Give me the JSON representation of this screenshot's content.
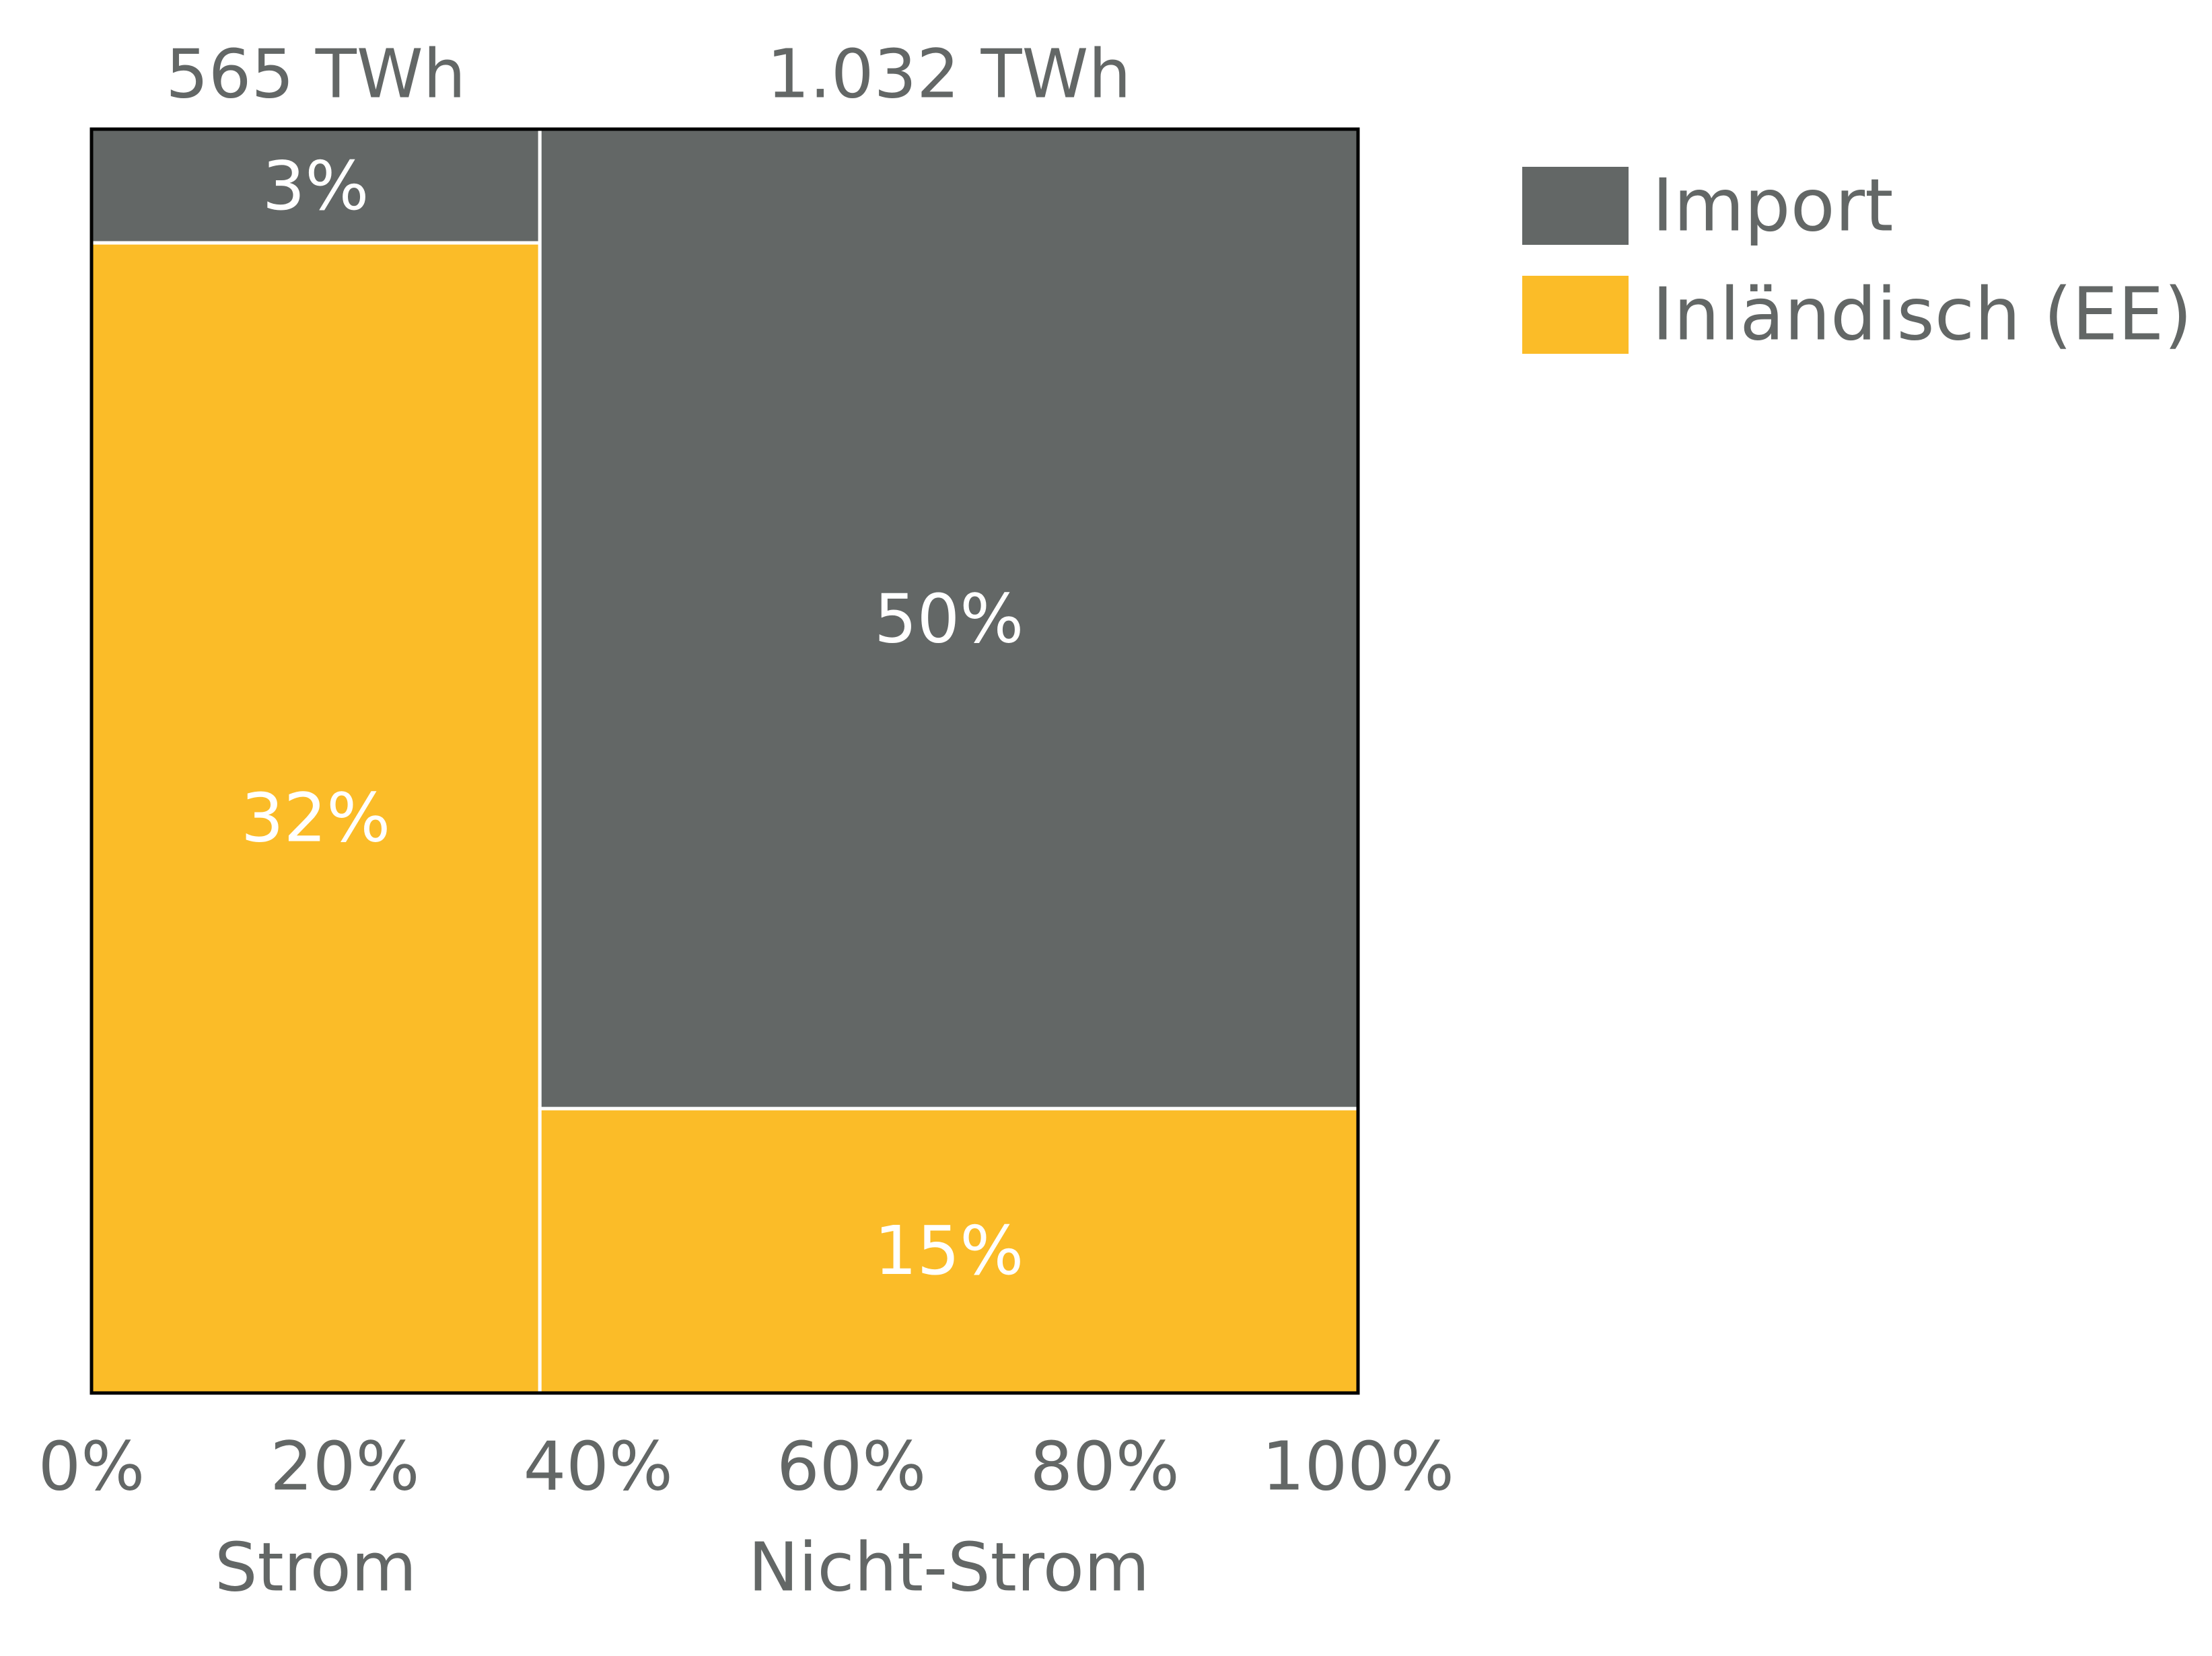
{
  "chart_data": {
    "type": "mosaic",
    "categories": [
      {
        "name": "Strom",
        "total_label": "565 TWh",
        "width_percent": 35.4
      },
      {
        "name": "Nicht-Strom",
        "total_label": "1.032 TWh",
        "width_percent": 64.6
      }
    ],
    "series": [
      {
        "name": "Import",
        "color": "#636766",
        "values": [
          3,
          50
        ],
        "labels": [
          "3%",
          "50%"
        ]
      },
      {
        "name": "Inländisch (EE)",
        "color": "#fbbc28",
        "values": [
          32,
          15
        ],
        "labels": [
          "32%",
          "15%"
        ]
      }
    ],
    "segments": [
      {
        "category": "Strom",
        "series": "Import",
        "label": "3%",
        "share_of_column": 0.09
      },
      {
        "category": "Strom",
        "series": "Inländisch (EE)",
        "label": "32%",
        "share_of_column": 0.91
      },
      {
        "category": "Nicht-Strom",
        "series": "Import",
        "label": "50%",
        "share_of_column": 0.775
      },
      {
        "category": "Nicht-Strom",
        "series": "Inländisch (EE)",
        "label": "15%",
        "share_of_column": 0.225
      }
    ],
    "x_ticks": [
      "0%",
      "20%",
      "40%",
      "60%",
      "80%",
      "100%"
    ],
    "xlim": [
      0,
      100
    ],
    "legend": {
      "placement": "right",
      "items": [
        "Import",
        "Inländisch (EE)"
      ]
    },
    "colors": {
      "import": "#636766",
      "domestic": "#fbbc28",
      "text": "#636766",
      "segment_text": "#ffffff"
    }
  }
}
